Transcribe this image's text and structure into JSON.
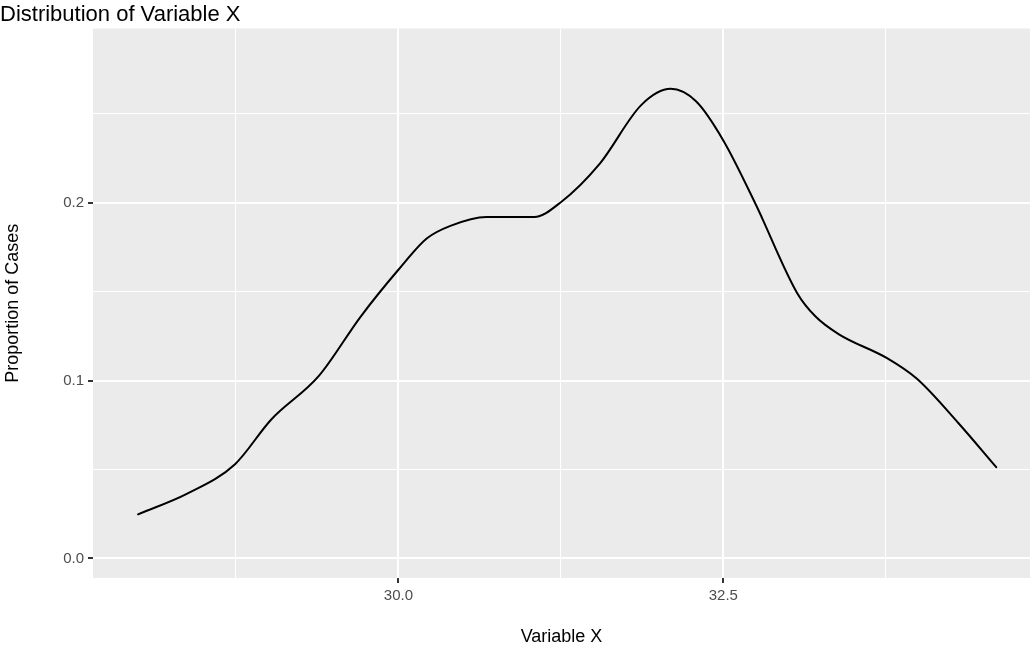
{
  "chart_data": {
    "type": "line",
    "title": "Distribution of Variable X",
    "xlabel": "Variable X",
    "ylabel": "Proportion of Cases",
    "series": [
      {
        "color": "#000000",
        "x": [
          27.997,
          28.375,
          28.743,
          29.02,
          29.388,
          29.71,
          30.0,
          30.22,
          30.4,
          30.677,
          31.045,
          31.25,
          31.55,
          31.87,
          32.095,
          32.29,
          32.5,
          32.75,
          33.07,
          33.21,
          33.39,
          33.76,
          33.99,
          34.31,
          34.6
        ],
        "values": [
          0.0248,
          0.0364,
          0.053,
          0.078,
          0.1026,
          0.136,
          0.1623,
          0.18,
          0.187,
          0.192,
          0.192,
          0.2003,
          0.222,
          0.255,
          0.264,
          0.257,
          0.235,
          0.199,
          0.149,
          0.136,
          0.126,
          0.1126,
          0.101,
          0.076,
          0.0513
        ]
      }
    ],
    "xlim": [
      27.65,
      34.86
    ],
    "ylim": [
      -0.011,
      0.298
    ],
    "xticks": [
      {
        "value": 28.75,
        "label": null
      },
      {
        "value": 30,
        "label": "30.0"
      },
      {
        "value": 31.25,
        "label": null
      },
      {
        "value": 32.5,
        "label": "32.5"
      },
      {
        "value": 33.75,
        "label": null
      }
    ],
    "yticks": [
      {
        "value": 0,
        "label": "0.0"
      },
      {
        "value": 0.05,
        "label": null
      },
      {
        "value": 0.1,
        "label": "0.1"
      },
      {
        "value": 0.15,
        "label": null
      },
      {
        "value": 0.2,
        "label": "0.2"
      },
      {
        "value": 0.25,
        "label": null
      }
    ],
    "grid": true,
    "marker": "none",
    "line_style": "solid"
  }
}
